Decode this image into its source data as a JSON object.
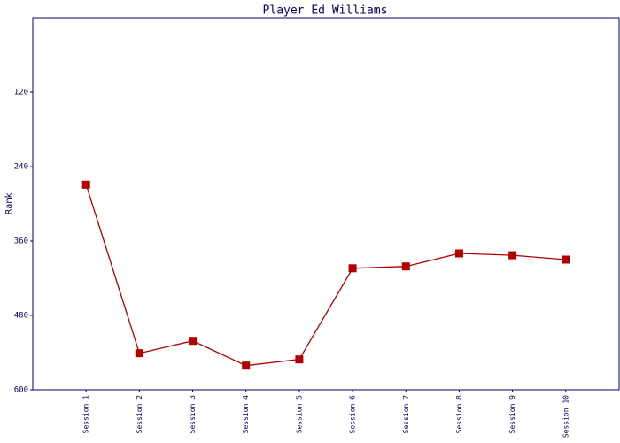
{
  "chart_data": {
    "type": "line",
    "title": "Player Ed Williams",
    "ylabel": "Rank",
    "categories": [
      "Session 1",
      "Session 2",
      "Session 3",
      "Session 4",
      "Session 5",
      "Session 6",
      "Session 7",
      "Session 8",
      "Session 9",
      "Session 10"
    ],
    "series": [
      {
        "name": "Ed Williams",
        "color": "#b00000",
        "values": [
          269,
          541,
          521,
          561,
          551,
          404,
          401,
          380,
          383,
          390
        ]
      }
    ],
    "ylim": [
      600,
      0
    ],
    "yticks": [
      120,
      240,
      360,
      480,
      600
    ],
    "grid": false
  }
}
